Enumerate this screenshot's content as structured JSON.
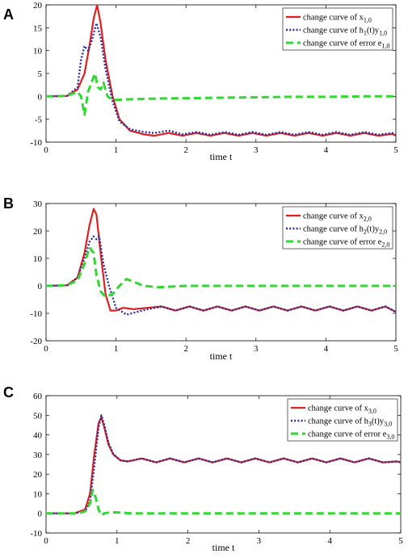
{
  "chart_data": [
    {
      "panel": "A",
      "type": "line",
      "xlabel": "time t",
      "xlim": [
        0,
        5
      ],
      "ylim": [
        -10,
        20
      ],
      "xticks": [
        0,
        1,
        2,
        3,
        4,
        5
      ],
      "yticks": [
        -10,
        -5,
        0,
        5,
        10,
        15,
        20
      ],
      "legend_position": "top-right",
      "series": [
        {
          "name": "change curve of x1,0",
          "label_main": "change curve of x",
          "label_sub": "1,0",
          "color": "#e02020",
          "style": "solid",
          "x": [
            0,
            0.3,
            0.45,
            0.55,
            0.62,
            0.68,
            0.73,
            0.78,
            0.85,
            0.95,
            1.05,
            1.2,
            1.4,
            1.55,
            1.75,
            1.95,
            2.15,
            2.35,
            2.55,
            2.75,
            2.95,
            3.15,
            3.35,
            3.55,
            3.75,
            3.95,
            4.15,
            4.35,
            4.55,
            4.75,
            4.95,
            5.0
          ],
          "y": [
            0,
            0.1,
            1.5,
            5,
            11,
            17,
            20,
            16,
            8,
            0,
            -5,
            -7.5,
            -8.3,
            -8.6,
            -8,
            -8.6,
            -8,
            -8.6,
            -8,
            -8.6,
            -8,
            -8.6,
            -8,
            -8.6,
            -8,
            -8.6,
            -8,
            -8.6,
            -8,
            -8.6,
            -8.2,
            -8.6
          ]
        },
        {
          "name": "change curve of h1(t)y1,0",
          "label_main": "change curve of h",
          "label_sub": "1",
          "label_mid": "(t)y",
          "label_sub2": "1,0",
          "color": "#2b2b9e",
          "style": "dotted",
          "x": [
            0,
            0.3,
            0.45,
            0.5,
            0.55,
            0.6,
            0.65,
            0.72,
            0.78,
            0.85,
            0.95,
            1.05,
            1.2,
            1.4,
            1.55,
            1.75,
            1.95,
            2.15,
            2.35,
            2.55,
            2.75,
            2.95,
            3.15,
            3.35,
            3.55,
            3.75,
            3.95,
            4.15,
            4.35,
            4.55,
            4.75,
            4.95,
            5.0
          ],
          "y": [
            0,
            0.1,
            2,
            8,
            11,
            10,
            12,
            16,
            13,
            6,
            -1,
            -5.5,
            -7.2,
            -7.8,
            -8,
            -7.5,
            -8.3,
            -7.8,
            -8.4,
            -7.8,
            -8.4,
            -7.8,
            -8.4,
            -7.8,
            -8.4,
            -7.8,
            -8.4,
            -7.8,
            -8.4,
            -7.8,
            -8.4,
            -8,
            -8.4
          ]
        },
        {
          "name": "change curve of error e1,0",
          "label_main": "change curve of error e",
          "label_sub": "1,0",
          "color": "#33d633",
          "style": "dashed",
          "x": [
            0,
            0.3,
            0.45,
            0.5,
            0.55,
            0.6,
            0.65,
            0.7,
            0.74,
            0.78,
            0.82,
            0.88,
            0.95,
            1.1,
            1.5,
            2.0,
            2.5,
            3.0,
            3.5,
            4.0,
            4.5,
            5.0
          ],
          "y": [
            0,
            0.1,
            1,
            0,
            -4,
            1,
            3,
            5,
            2,
            1.5,
            3,
            0,
            -0.8,
            -0.7,
            -0.5,
            -0.4,
            -0.3,
            -0.2,
            -0.1,
            -0.1,
            0,
            0
          ]
        }
      ]
    },
    {
      "panel": "B",
      "type": "line",
      "xlabel": "time t",
      "xlim": [
        0,
        5
      ],
      "ylim": [
        -20,
        30
      ],
      "xticks": [
        0,
        1,
        2,
        3,
        4,
        5
      ],
      "yticks": [
        -20,
        -10,
        0,
        10,
        20,
        30
      ],
      "legend_position": "top-right",
      "series": [
        {
          "name": "change curve of x2,0",
          "label_main": "change curve of x",
          "label_sub": "2,0",
          "color": "#e02020",
          "style": "solid",
          "x": [
            0,
            0.3,
            0.45,
            0.55,
            0.62,
            0.68,
            0.72,
            0.78,
            0.85,
            0.92,
            1.0,
            1.1,
            1.25,
            1.45,
            1.65,
            1.85,
            2.05,
            2.25,
            2.45,
            2.65,
            2.85,
            3.05,
            3.25,
            3.45,
            3.65,
            3.85,
            4.05,
            4.25,
            4.45,
            4.65,
            4.85,
            5.0
          ],
          "y": [
            0,
            0.2,
            3,
            12,
            22,
            28,
            26,
            12,
            -3,
            -9,
            -9,
            -8,
            -8.5,
            -8,
            -7.5,
            -9,
            -7.5,
            -9,
            -7.5,
            -9,
            -7.5,
            -9,
            -7.5,
            -9,
            -7.5,
            -9,
            -7.5,
            -9,
            -7.5,
            -9,
            -7.5,
            -9.5
          ]
        },
        {
          "name": "change curve of h2(t)y2,0",
          "label_main": "change curve of h",
          "label_sub": "2",
          "label_mid": "(t)y",
          "label_sub2": "2,0",
          "color": "#2b2b9e",
          "style": "dotted",
          "x": [
            0,
            0.3,
            0.45,
            0.55,
            0.62,
            0.68,
            0.72,
            0.76,
            0.82,
            0.9,
            1.0,
            1.15,
            1.3,
            1.45,
            1.65,
            1.85,
            2.05,
            2.25,
            2.45,
            2.65,
            2.85,
            3.05,
            3.25,
            3.45,
            3.65,
            3.85,
            4.05,
            4.25,
            4.45,
            4.65,
            4.85,
            5.0
          ],
          "y": [
            0,
            0.2,
            3,
            10,
            16,
            18,
            17,
            18,
            8,
            0,
            -8,
            -10.5,
            -9.5,
            -8.5,
            -7.5,
            -9,
            -7.5,
            -9,
            -7.5,
            -9,
            -7.5,
            -9,
            -7.5,
            -9,
            -7.5,
            -9,
            -7.5,
            -9,
            -7.5,
            -9,
            -7.5,
            -9.5
          ]
        },
        {
          "name": "change curve of error e2,0",
          "label_main": "change curve of error e",
          "label_sub": "2,0",
          "color": "#33d633",
          "style": "dashed",
          "x": [
            0,
            0.3,
            0.45,
            0.55,
            0.62,
            0.68,
            0.72,
            0.78,
            0.85,
            0.95,
            1.05,
            1.15,
            1.25,
            1.4,
            1.6,
            2.0,
            2.5,
            3.0,
            3.5,
            4.0,
            4.5,
            5.0
          ],
          "y": [
            0,
            0.2,
            2,
            8,
            14,
            12,
            4,
            -2,
            -4,
            -3,
            0,
            2.5,
            1.5,
            0,
            -0.5,
            0,
            0,
            0,
            0,
            0,
            0,
            0
          ]
        }
      ]
    },
    {
      "panel": "C",
      "type": "line",
      "xlabel": "time t",
      "xlim": [
        0,
        5
      ],
      "ylim": [
        -10,
        60
      ],
      "xticks": [
        0,
        1,
        2,
        3,
        4,
        5
      ],
      "yticks": [
        -10,
        0,
        10,
        20,
        30,
        40,
        50,
        60
      ],
      "legend_position": "top-right",
      "series": [
        {
          "name": "change curve of x3,0",
          "label_main": "change curve of x",
          "label_sub": "3,0",
          "color": "#e02020",
          "style": "solid",
          "x": [
            0,
            0.4,
            0.55,
            0.62,
            0.68,
            0.74,
            0.78,
            0.82,
            0.88,
            0.95,
            1.05,
            1.15,
            1.35,
            1.55,
            1.75,
            1.95,
            2.15,
            2.35,
            2.55,
            2.75,
            2.95,
            3.15,
            3.35,
            3.55,
            3.75,
            3.95,
            4.15,
            4.35,
            4.55,
            4.75,
            4.95,
            5.0
          ],
          "y": [
            0,
            0,
            2,
            10,
            30,
            46,
            49,
            44,
            35,
            30,
            27,
            26.5,
            28,
            26,
            28,
            26,
            28,
            26,
            28,
            26,
            28,
            26,
            28,
            26,
            28,
            26,
            28,
            26,
            28,
            26,
            26.5,
            26
          ]
        },
        {
          "name": "change curve of h3(t)y3,0",
          "label_main": "change curve of h",
          "label_sub": "3",
          "label_mid": "(t)y",
          "label_sub2": "3,0",
          "color": "#2b2b9e",
          "style": "dotted",
          "x": [
            0,
            0.4,
            0.55,
            0.62,
            0.68,
            0.74,
            0.78,
            0.82,
            0.88,
            0.95,
            1.05,
            1.15,
            1.35,
            1.55,
            1.75,
            1.95,
            2.15,
            2.35,
            2.55,
            2.75,
            2.95,
            3.15,
            3.35,
            3.55,
            3.75,
            3.95,
            4.15,
            4.35,
            4.55,
            4.75,
            4.95,
            5.0
          ],
          "y": [
            0,
            0,
            1,
            6,
            24,
            44,
            50,
            45,
            36,
            30,
            27,
            26.5,
            28,
            26,
            28,
            26,
            28,
            26,
            28,
            26,
            28,
            26,
            28,
            26,
            28,
            26,
            28,
            26,
            28,
            26,
            26.5,
            26
          ]
        },
        {
          "name": "change curve of error e3,0",
          "label_main": "change curve of error e",
          "label_sub": "3,0",
          "color": "#33d633",
          "style": "dashed",
          "x": [
            0,
            0.45,
            0.55,
            0.62,
            0.66,
            0.7,
            0.74,
            0.78,
            0.82,
            0.9,
            1.0,
            1.2,
            1.5,
            2.0,
            2.5,
            3.0,
            3.5,
            4.0,
            4.5,
            5.0
          ],
          "y": [
            0,
            0,
            1,
            5,
            12,
            8,
            2,
            -1,
            0,
            0.5,
            0.5,
            0,
            0,
            0,
            0,
            0,
            0,
            0,
            0,
            0
          ]
        }
      ]
    }
  ]
}
